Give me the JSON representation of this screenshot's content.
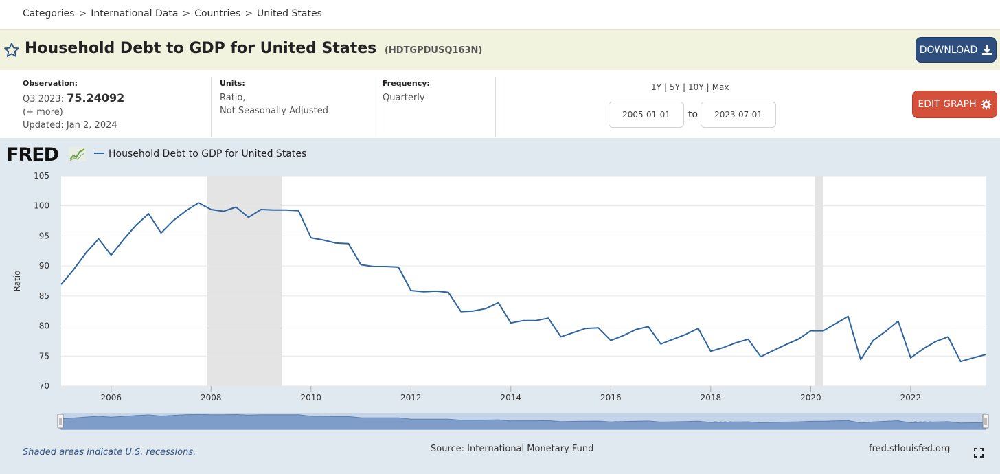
{
  "breadcrumb": {
    "items": [
      "Categories",
      "International Data",
      "Countries",
      "United States"
    ],
    "separator": ">"
  },
  "header": {
    "title": "Household Debt to GDP for United States",
    "series_id": "(HDTGPDUSQ163N)",
    "download_label": "DOWNLOAD"
  },
  "meta": {
    "observation_label": "Observation:",
    "observation_period": "Q3 2023:",
    "observation_value": "75.24092",
    "more": "(+ more)",
    "updated": "Updated: Jan 2, 2024",
    "units_label": "Units:",
    "units_line1": "Ratio,",
    "units_line2": "Not Seasonally Adjusted",
    "frequency_label": "Frequency:",
    "frequency_value": "Quarterly"
  },
  "controls": {
    "range_1y": "1Y",
    "range_5y": "5Y",
    "range_10y": "10Y",
    "range_max": "Max",
    "start_date": "2005-01-01",
    "to_label": "to",
    "end_date": "2023-07-01",
    "edit_label": "EDIT GRAPH"
  },
  "chart_header": {
    "logo": "FRED",
    "legend_label": "Household Debt to GDP for United States"
  },
  "footer": {
    "recession_note": "Shaded areas indicate U.S. recessions.",
    "source": "Source: International Monetary Fund",
    "site": "fred.stlouisfed.org"
  },
  "colors": {
    "line": "#2e64a0",
    "recession": "#e4e4e4",
    "download_button": "#2e4e7e",
    "edit_button": "#d4503a",
    "title_bar": "#f1f3df",
    "panel": "#e1e9f0"
  },
  "chart_data": {
    "type": "line",
    "title": "",
    "xlabel": "",
    "ylabel": "Ratio",
    "ylim": [
      70,
      105
    ],
    "xlim": [
      "2005-01-01",
      "2023-07-01"
    ],
    "yticks": [
      70,
      75,
      80,
      85,
      90,
      95,
      100,
      105
    ],
    "xticks": [
      "2006",
      "2008",
      "2010",
      "2012",
      "2014",
      "2016",
      "2018",
      "2020",
      "2022"
    ],
    "grid": true,
    "recessions": [
      {
        "start": "2007-12-01",
        "end": "2009-06-01"
      },
      {
        "start": "2020-02-01",
        "end": "2020-04-01"
      }
    ],
    "series": [
      {
        "name": "Household Debt to GDP for United States",
        "frequency": "quarterly",
        "start": "2005-01-01",
        "values": [
          86.9,
          89.4,
          92.2,
          94.5,
          91.8,
          94.4,
          96.8,
          98.7,
          95.5,
          97.6,
          99.2,
          100.5,
          99.4,
          99.1,
          99.8,
          98.1,
          99.4,
          99.3,
          99.3,
          99.2,
          94.7,
          94.3,
          93.8,
          93.7,
          90.2,
          89.9,
          89.9,
          89.8,
          85.9,
          85.7,
          85.8,
          85.6,
          82.4,
          82.5,
          82.9,
          83.9,
          80.5,
          80.9,
          80.9,
          81.3,
          78.2,
          78.9,
          79.6,
          79.7,
          77.6,
          78.4,
          79.4,
          79.9,
          77.0,
          77.8,
          78.6,
          79.6,
          75.8,
          76.4,
          77.2,
          77.8,
          74.9,
          75.9,
          76.9,
          77.8,
          79.2,
          79.2,
          80.4,
          81.6,
          74.4,
          77.6,
          79.1,
          80.8,
          74.7,
          76.2,
          77.4,
          78.2,
          74.1,
          74.7,
          75.24
        ]
      }
    ]
  }
}
